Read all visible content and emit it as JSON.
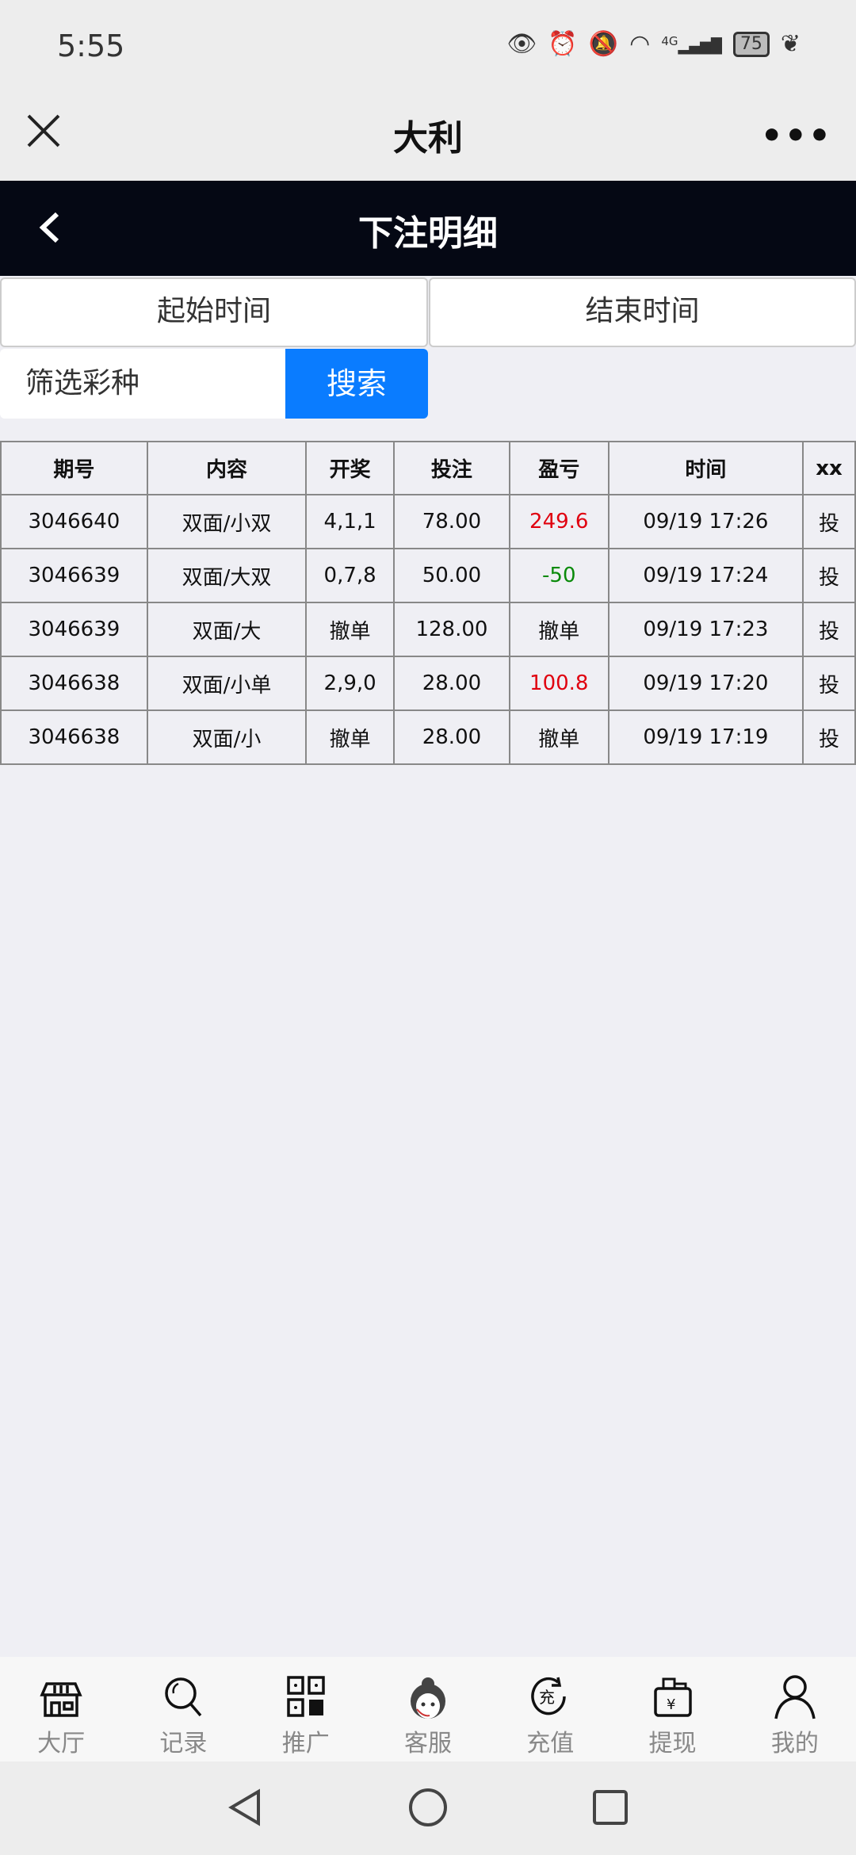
{
  "status_bar": {
    "time": "5:55",
    "battery": "75",
    "network": "4G"
  },
  "titlebar": {
    "title": "大利",
    "more": "•••"
  },
  "header": {
    "title": "下注明细"
  },
  "filters": {
    "start_time": "起始时间",
    "end_time": "结束时间",
    "lottery_filter": "筛选彩种",
    "search_label": "搜索"
  },
  "table": {
    "headers": [
      "期号",
      "内容",
      "开奖",
      "投注",
      "盈亏",
      "时间",
      "xx"
    ],
    "rows": [
      {
        "issue": "3046640",
        "content": "双面/小双",
        "draw": "4,1,1",
        "bet": "78.00",
        "pl": "249.6",
        "pl_color": "red",
        "time": "09/19 17:26",
        "action": "投"
      },
      {
        "issue": "3046639",
        "content": "双面/大双",
        "draw": "0,7,8",
        "bet": "50.00",
        "pl": "-50",
        "pl_color": "green",
        "time": "09/19 17:24",
        "action": "投"
      },
      {
        "issue": "3046639",
        "content": "双面/大",
        "draw": "撤单",
        "bet": "128.00",
        "pl": "撤单",
        "pl_color": "",
        "time": "09/19 17:23",
        "action": "投"
      },
      {
        "issue": "3046638",
        "content": "双面/小单",
        "draw": "2,9,0",
        "bet": "28.00",
        "pl": "100.8",
        "pl_color": "red",
        "time": "09/19 17:20",
        "action": "投"
      },
      {
        "issue": "3046638",
        "content": "双面/小",
        "draw": "撤单",
        "bet": "28.00",
        "pl": "撤单",
        "pl_color": "",
        "time": "09/19 17:19",
        "action": "投"
      }
    ]
  },
  "bottom_nav": [
    {
      "label": "大厅",
      "icon": "store-icon"
    },
    {
      "label": "记录",
      "icon": "search-icon"
    },
    {
      "label": "推广",
      "icon": "qr-code-icon"
    },
    {
      "label": "客服",
      "icon": "customer-service-icon"
    },
    {
      "label": "充值",
      "icon": "recharge-icon"
    },
    {
      "label": "提现",
      "icon": "wallet-icon"
    },
    {
      "label": "我的",
      "icon": "user-icon"
    }
  ],
  "colors": {
    "header_bg": "#050814",
    "accent": "#0a7cff",
    "profit": "#e0000f",
    "loss": "#0a8a0a"
  }
}
